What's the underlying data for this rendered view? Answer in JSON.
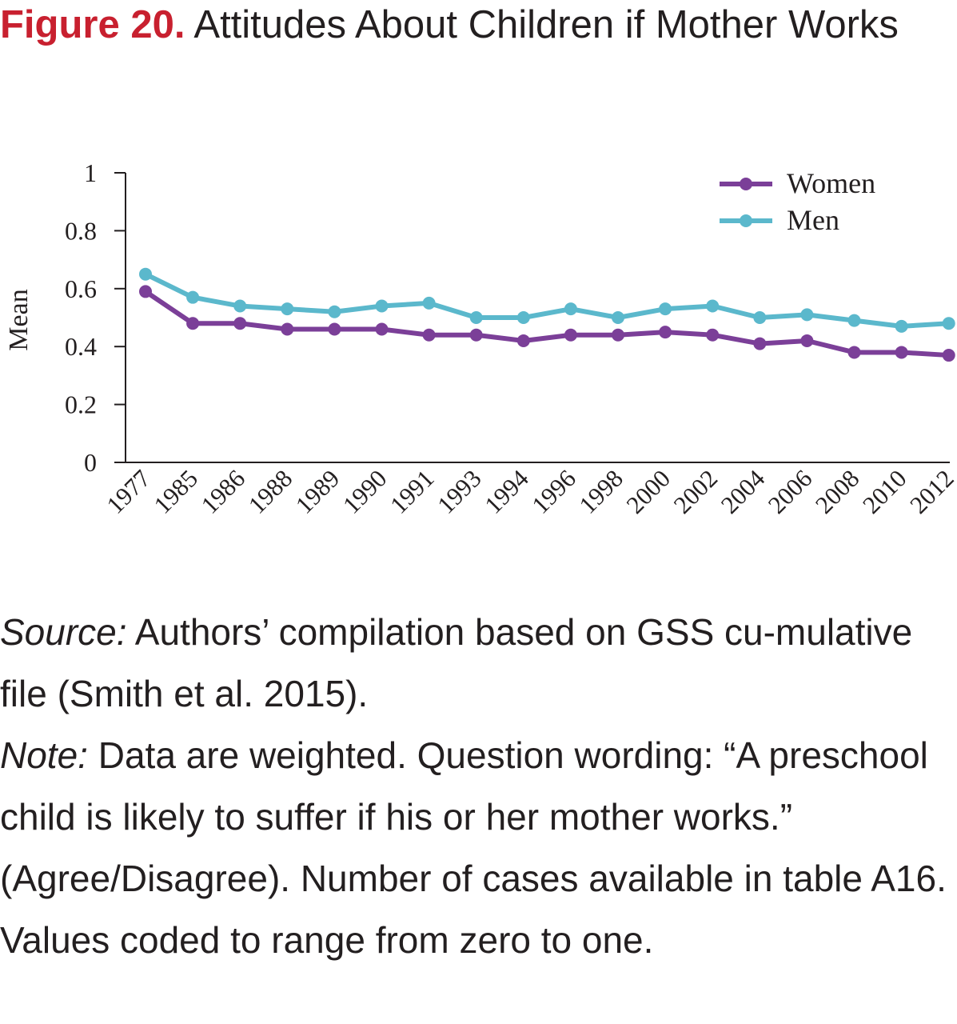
{
  "figure": {
    "number": "Figure 20.",
    "title": "Attitudes About Children if Mother Works"
  },
  "chart_data": {
    "type": "line",
    "title": "",
    "xlabel": "",
    "ylabel": "Mean",
    "ylim": [
      0,
      1
    ],
    "yticks": [
      "0",
      "0.2",
      "0.4",
      "0.6",
      "0.8",
      "1"
    ],
    "grid": false,
    "legend_position": "top-right",
    "categories": [
      "1977",
      "1985",
      "1986",
      "1988",
      "1989",
      "1990",
      "1991",
      "1993",
      "1994",
      "1996",
      "1998",
      "2000",
      "2002",
      "2004",
      "2006",
      "2008",
      "2010",
      "2012"
    ],
    "series": [
      {
        "name": "Women",
        "color": "#7b3f98",
        "values": [
          0.59,
          0.48,
          0.48,
          0.46,
          0.46,
          0.46,
          0.44,
          0.44,
          0.42,
          0.44,
          0.44,
          0.45,
          0.44,
          0.41,
          0.42,
          0.38,
          0.38,
          0.37
        ]
      },
      {
        "name": "Men",
        "color": "#5bb8cc",
        "values": [
          0.65,
          0.57,
          0.54,
          0.53,
          0.52,
          0.54,
          0.55,
          0.5,
          0.5,
          0.53,
          0.5,
          0.53,
          0.54,
          0.5,
          0.51,
          0.49,
          0.47,
          0.48
        ]
      }
    ]
  },
  "notes": {
    "source_label": "Source:",
    "source_text": " Authors’ compilation based on GSS cu-mulative file (Smith et al. 2015).",
    "note_label": "Note:",
    "note_text": " Data are weighted. Question wording: “A preschool child is likely to suffer if his or her mother works.” (Agree/Disagree). Number of cases available in table A16. Values coded to range from zero to one."
  }
}
